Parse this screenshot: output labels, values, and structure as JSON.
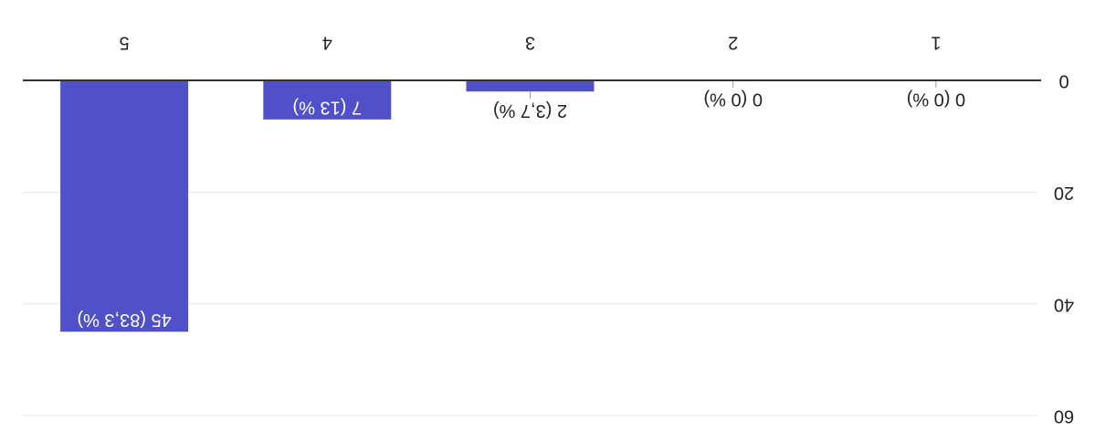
{
  "chart_data": {
    "type": "bar",
    "categories": [
      "1",
      "2",
      "3",
      "4",
      "5"
    ],
    "values": [
      0,
      0,
      2,
      7,
      45
    ],
    "value_labels": [
      "0 (0 %)",
      "0 (0 %)",
      "2 (3,7 %)",
      "7 (13 %)",
      "45 (83,3 %)"
    ],
    "color": "#5050c8",
    "ylim": [
      0,
      60
    ],
    "yticks": [
      0,
      20,
      40,
      60
    ],
    "grid": true
  }
}
